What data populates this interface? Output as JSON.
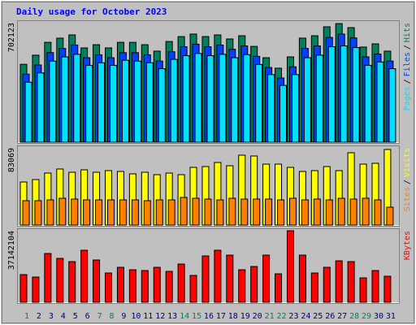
{
  "chart_data": [
    {
      "type": "bar",
      "title": "Daily usage for October 2023",
      "ylim": [
        0,
        702123
      ],
      "separator": "/",
      "series": [
        {
          "name": "Hits",
          "color": "#00805c",
          "values": [
            461000,
            515000,
            591000,
            616000,
            635000,
            558000,
            577000,
            558000,
            591000,
            591000,
            577000,
            539000,
            596000,
            625000,
            640000,
            625000,
            635000,
            611000,
            630000,
            567000,
            500000,
            438000,
            505000,
            616000,
            630000,
            683000,
            702123,
            678000,
            563000,
            582000,
            539000
          ]
        },
        {
          "name": "Files",
          "color": "#0040ff",
          "values": [
            403000,
            457000,
            530000,
            555000,
            575000,
            500000,
            517000,
            500000,
            530000,
            530000,
            517000,
            480000,
            535000,
            565000,
            580000,
            565000,
            575000,
            550000,
            570000,
            508000,
            442000,
            380000,
            446000,
            555000,
            570000,
            620000,
            640000,
            617000,
            505000,
            522000,
            480000
          ]
        },
        {
          "name": "Pages",
          "color": "#00e0ff",
          "values": [
            355000,
            410000,
            480000,
            505000,
            520000,
            455000,
            470000,
            455000,
            485000,
            480000,
            470000,
            435000,
            490000,
            512000,
            525000,
            512000,
            520000,
            500000,
            518000,
            460000,
            400000,
            336000,
            400000,
            500000,
            515000,
            565000,
            570000,
            560000,
            455000,
            475000,
            435000
          ]
        }
      ]
    },
    {
      "type": "bar",
      "ylim": [
        0,
        83069
      ],
      "separator": "/",
      "series": [
        {
          "name": "Visits",
          "color": "#ffff00",
          "values": [
            47340,
            50020,
            57170,
            61630,
            58060,
            60740,
            58060,
            59840,
            58950,
            56270,
            58060,
            55380,
            57170,
            55380,
            63420,
            64310,
            68780,
            65200,
            76820,
            75920,
            66990,
            66990,
            63420,
            58950,
            59840,
            64310,
            59840,
            79500,
            66990,
            67880,
            83069
          ]
        },
        {
          "name": "Sites",
          "color": "#ff8000",
          "values": [
            26800,
            26800,
            27690,
            29480,
            28580,
            27690,
            27690,
            27690,
            27690,
            27690,
            26800,
            27690,
            27690,
            30370,
            29480,
            28580,
            27690,
            29480,
            28580,
            28580,
            28580,
            27690,
            29480,
            27690,
            28580,
            27690,
            29480,
            28580,
            29480,
            27690,
            19650
          ]
        }
      ]
    },
    {
      "type": "bar",
      "ylim": [
        0,
        37142104
      ],
      "categories": [
        "1",
        "2",
        "3",
        "4",
        "5",
        "6",
        "7",
        "8",
        "9",
        "10",
        "11",
        "12",
        "13",
        "14",
        "15",
        "16",
        "17",
        "18",
        "19",
        "20",
        "21",
        "22",
        "23",
        "24",
        "25",
        "26",
        "27",
        "28",
        "29",
        "30",
        "31"
      ],
      "category_colors": [
        "#008066",
        "#00007f",
        "#00007f",
        "#00007f",
        "#00007f",
        "#00007f",
        "#008066",
        "#008066",
        "#00007f",
        "#00007f",
        "#00007f",
        "#00007f",
        "#00007f",
        "#008066",
        "#008066",
        "#00007f",
        "#00007f",
        "#00007f",
        "#00007f",
        "#00007f",
        "#008066",
        "#008066",
        "#00007f",
        "#00007f",
        "#00007f",
        "#00007f",
        "#00007f",
        "#008066",
        "#008066",
        "#00007f",
        "#00007f"
      ],
      "series": [
        {
          "name": "KBytes",
          "color": "#ff0000",
          "values": [
            14350000,
            13084000,
            25324000,
            22792000,
            21103000,
            27012000,
            21948000,
            15194000,
            18149000,
            16883000,
            16461000,
            18149000,
            16039000,
            19837000,
            13928000,
            24058000,
            27012000,
            24480000,
            16883000,
            18571000,
            24480000,
            14772000,
            37142104,
            24480000,
            15194000,
            18149000,
            21526000,
            21103000,
            12662000,
            16461000,
            13506000
          ]
        }
      ]
    }
  ]
}
